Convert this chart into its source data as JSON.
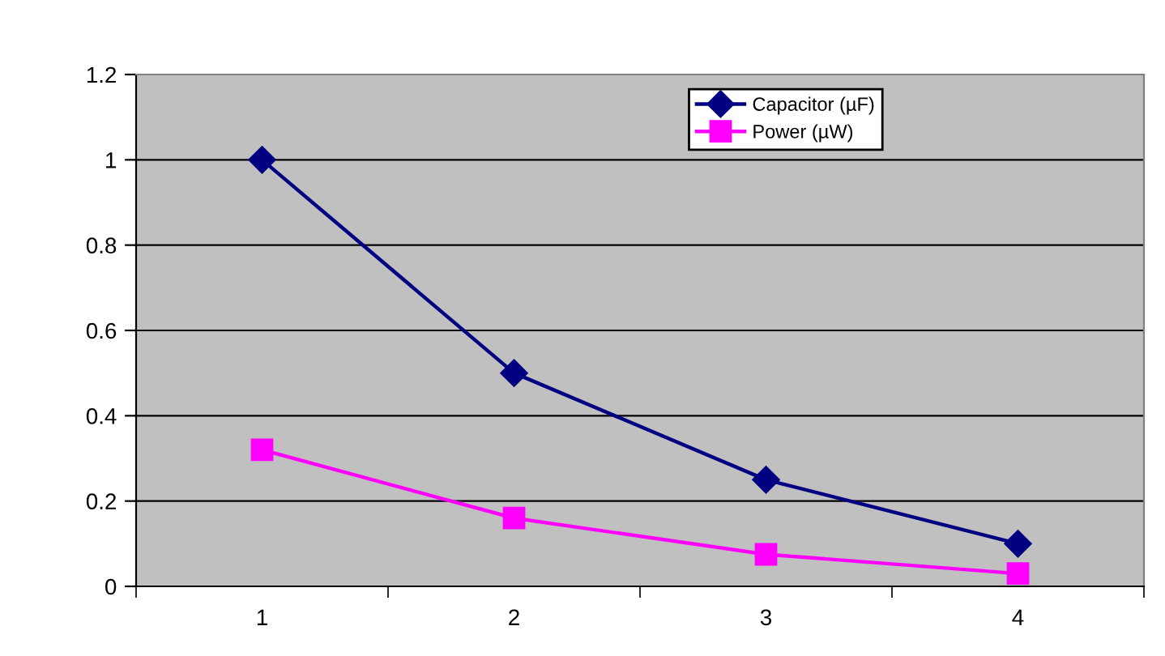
{
  "chart_data": {
    "type": "line",
    "categories": [
      "1",
      "2",
      "3",
      "4"
    ],
    "series": [
      {
        "name": "Capacitor (µF)",
        "color": "#000080",
        "marker": "diamond",
        "values": [
          1,
          0.5,
          0.25,
          0.1
        ]
      },
      {
        "name": "Power (µW)",
        "color": "#ff00ff",
        "marker": "square",
        "values": [
          0.32,
          0.16,
          0.075,
          0.03
        ]
      }
    ],
    "ylim": [
      0,
      1.2
    ],
    "yticks": [
      0,
      0.2,
      0.4,
      0.6,
      0.8,
      1,
      1.2
    ],
    "grid": "y",
    "legend": "top right",
    "line_style": "solid"
  }
}
